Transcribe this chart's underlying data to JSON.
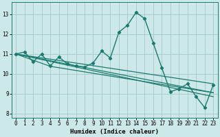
{
  "xlabel": "Humidex (Indice chaleur)",
  "background_color": "#cce8e8",
  "grid_color": "#aacccc",
  "line_color": "#1a7a6e",
  "xlim": [
    -0.5,
    23.5
  ],
  "ylim": [
    7.8,
    13.6
  ],
  "yticks": [
    8,
    9,
    10,
    11,
    12,
    13
  ],
  "xticks": [
    0,
    1,
    2,
    3,
    4,
    5,
    6,
    7,
    8,
    9,
    10,
    11,
    12,
    13,
    14,
    15,
    16,
    17,
    18,
    19,
    20,
    21,
    22,
    23
  ],
  "main_x": [
    0,
    1,
    2,
    3,
    4,
    5,
    6,
    7,
    8,
    9,
    10,
    11,
    12,
    13,
    14,
    15,
    16,
    17,
    18,
    19,
    20,
    21,
    22,
    23
  ],
  "main_y": [
    11.0,
    11.1,
    10.6,
    11.0,
    10.4,
    10.85,
    10.5,
    10.4,
    10.35,
    10.55,
    11.15,
    10.8,
    12.1,
    12.45,
    13.1,
    12.78,
    11.55,
    10.3,
    9.1,
    9.25,
    9.5,
    8.85,
    8.3,
    9.45
  ],
  "trend_lines": [
    {
      "x": [
        0,
        23
      ],
      "y": [
        11.0,
        9.5
      ]
    },
    {
      "x": [
        0,
        23
      ],
      "y": [
        11.0,
        9.05
      ]
    },
    {
      "x": [
        0,
        4,
        23
      ],
      "y": [
        11.0,
        10.38,
        9.05
      ]
    },
    {
      "x": [
        0,
        23
      ],
      "y": [
        11.0,
        8.85
      ]
    }
  ]
}
